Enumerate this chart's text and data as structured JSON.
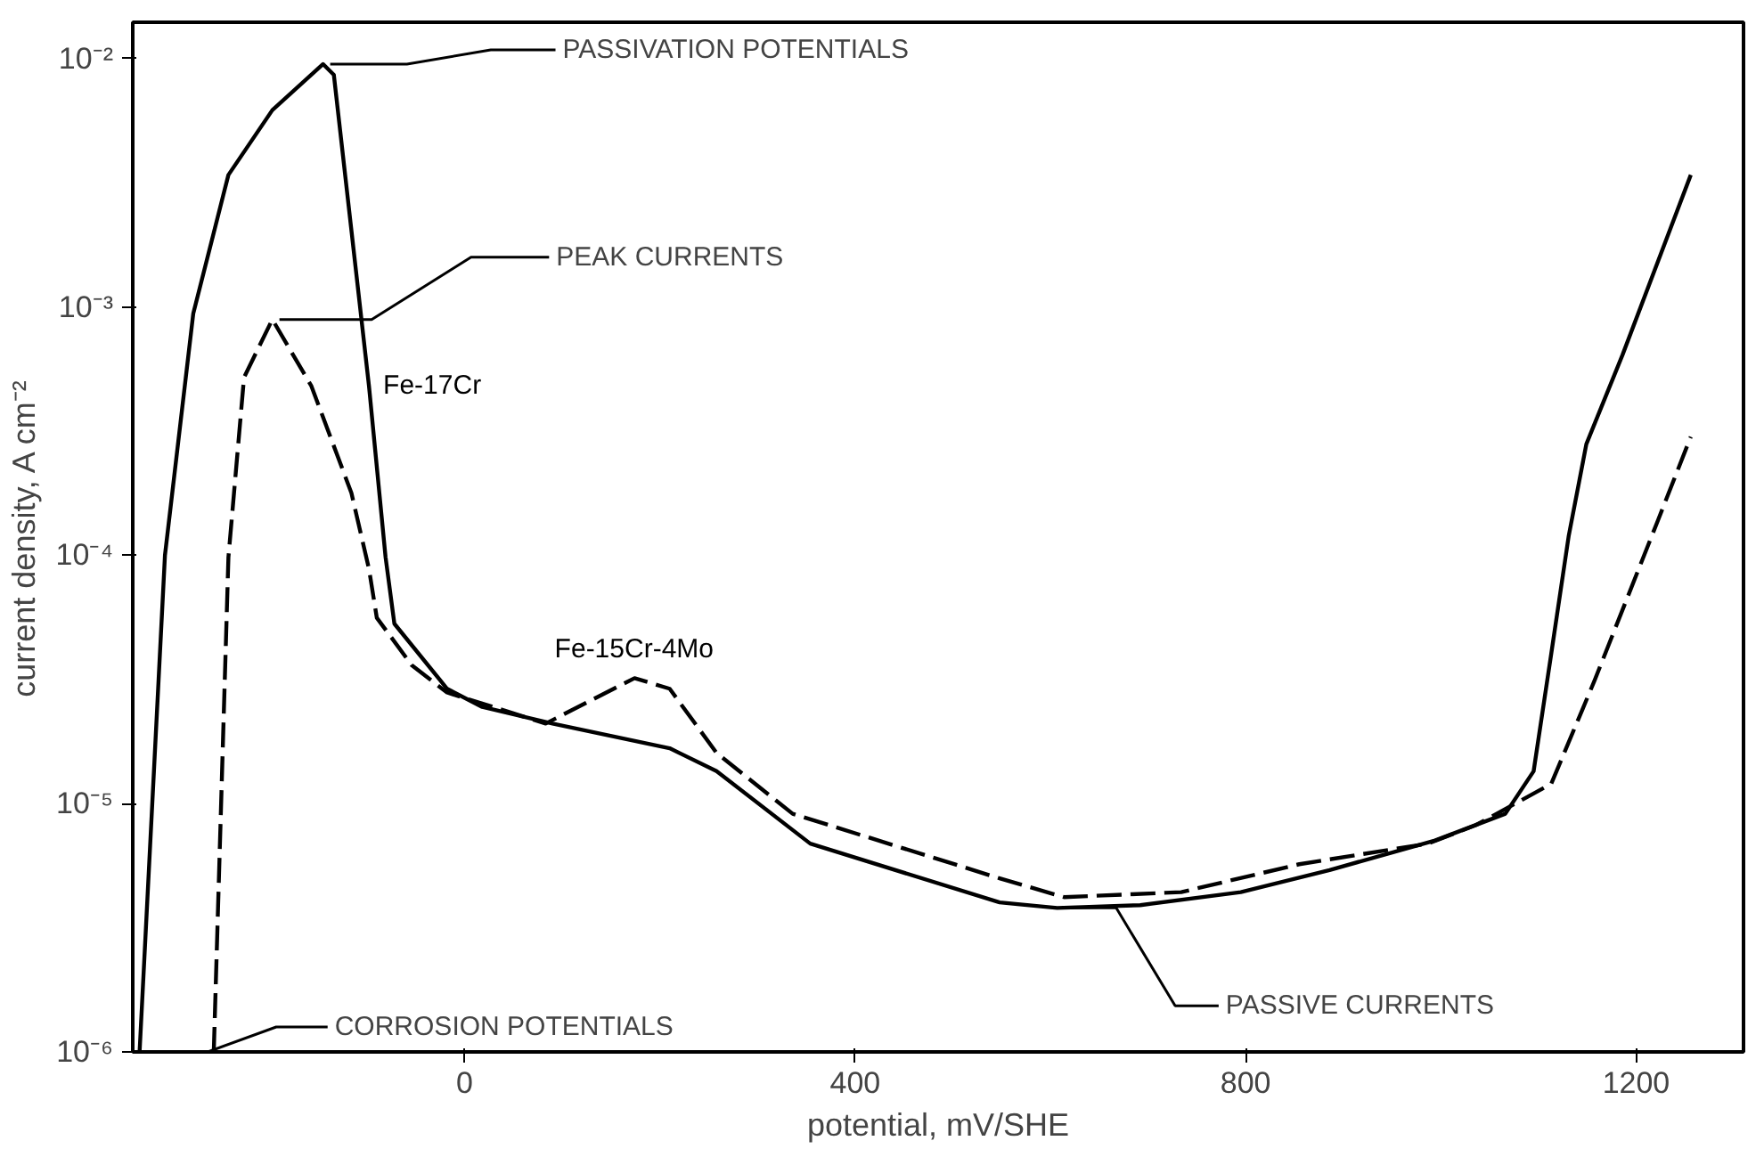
{
  "chart_data": {
    "type": "line",
    "xlabel": "potential, mV/SHE",
    "ylabel": "current density, A cm⁻²",
    "log": "y",
    "grid": false,
    "marker": "none",
    "xlim": [
      -340,
      1310
    ],
    "ylim": [
      1e-06,
      0.014
    ],
    "xticks": [
      0,
      400,
      800,
      1200
    ],
    "yticks": [
      {
        "value": 1e-06,
        "label": "10⁻⁶"
      },
      {
        "value": 1e-05,
        "label": "10⁻⁵"
      },
      {
        "value": 0.0001,
        "label": "10⁻⁴"
      },
      {
        "value": 0.001,
        "label": "10⁻³"
      },
      {
        "value": 0.01,
        "label": "10⁻²"
      }
    ],
    "series": [
      {
        "name": "Fe-17Cr",
        "color": "#000000",
        "line_style": "solid",
        "x": [
          -333,
          -307,
          -278,
          -242,
          -197,
          -145,
          -134,
          -98,
          -81,
          -72,
          -18,
          18,
          90,
          210,
          258,
          354,
          548,
          607,
          692,
          795,
          886,
          994,
          1066,
          1095,
          1113,
          1131,
          1149,
          1186,
          1256
        ],
        "values": [
          1e-06,
          0.0001,
          0.00094,
          0.0034,
          0.0062,
          0.0095,
          0.0086,
          0.00048,
          9.8e-05,
          5.3e-05,
          2.9e-05,
          2.45e-05,
          2.1e-05,
          1.67e-05,
          1.35e-05,
          6.9e-06,
          4e-06,
          3.8e-06,
          3.9e-06,
          4.4e-06,
          5.4e-06,
          7.1e-06,
          9.1e-06,
          1.35e-05,
          4e-05,
          0.00012,
          0.00028,
          0.00064,
          0.0034
        ]
      },
      {
        "name": "Fe-15Cr-4Mo",
        "color": "#000000",
        "line_style": "dashed",
        "x": [
          -257,
          -242,
          -226,
          -197,
          -157,
          -116,
          -98,
          -90,
          -54,
          -18,
          83,
          174,
          210,
          258,
          336,
          548,
          614,
          734,
          855,
          987,
          1036,
          1113,
          1157,
          1222,
          1256
        ],
        "values": [
          1e-06,
          9.8e-05,
          0.00052,
          0.00089,
          0.00048,
          0.000178,
          8.8e-05,
          5.6e-05,
          3.6e-05,
          2.8e-05,
          2.1e-05,
          3.2e-05,
          2.9e-05,
          1.6e-05,
          9.1e-06,
          5e-06,
          4.2e-06,
          4.4e-06,
          5.7e-06,
          6.9e-06,
          8.2e-06,
          1.2e-05,
          3.1e-05,
          0.000137,
          0.0003
        ]
      }
    ],
    "annotations": [
      {
        "text": "PASSIVATION POTENTIALS",
        "x": -145,
        "y": 0.0095
      },
      {
        "text": "PEAK CURRENTS",
        "x": -197,
        "y": 0.00089
      },
      {
        "text": "CORROSION POTENTIALS",
        "x": -333,
        "y": 1e-06
      },
      {
        "text": "PASSIVE CURRENTS",
        "x": 607,
        "y": 3.8e-06
      }
    ]
  }
}
